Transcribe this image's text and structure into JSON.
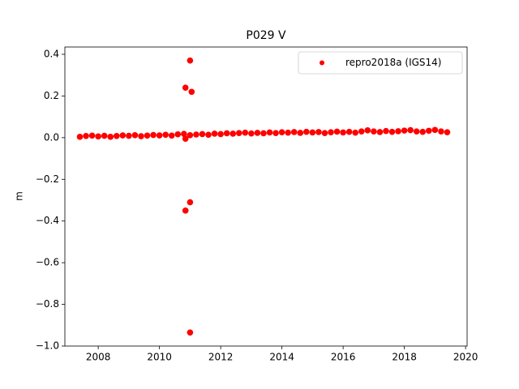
{
  "chart_data": {
    "type": "scatter",
    "title": "P029 V",
    "ylabel": "m",
    "series": [
      {
        "name": "repro2018a (IGS14)",
        "color": "#ff0000",
        "x": [
          2007.4,
          2007.6,
          2007.8,
          2008.0,
          2008.2,
          2008.4,
          2008.6,
          2008.8,
          2009.0,
          2009.2,
          2009.4,
          2009.6,
          2009.8,
          2010.0,
          2010.2,
          2010.4,
          2010.6,
          2010.8,
          2011.0,
          2011.2,
          2011.4,
          2011.6,
          2011.8,
          2012.0,
          2012.2,
          2012.4,
          2012.6,
          2012.8,
          2013.0,
          2013.2,
          2013.4,
          2013.6,
          2013.8,
          2014.0,
          2014.2,
          2014.4,
          2014.6,
          2014.8,
          2015.0,
          2015.2,
          2015.4,
          2015.6,
          2015.8,
          2016.0,
          2016.2,
          2016.4,
          2016.6,
          2016.8,
          2017.0,
          2017.2,
          2017.4,
          2017.6,
          2017.8,
          2018.0,
          2018.2,
          2018.4,
          2018.6,
          2018.8,
          2019.0,
          2019.2,
          2019.4,
          2011.0,
          2010.85,
          2011.05,
          2011.0,
          2010.85,
          2011.0,
          2010.85
        ],
        "y": [
          0.004,
          0.008,
          0.01,
          0.006,
          0.009,
          0.004,
          0.008,
          0.011,
          0.009,
          0.012,
          0.007,
          0.01,
          0.013,
          0.011,
          0.014,
          0.01,
          0.016,
          0.018,
          0.012,
          0.015,
          0.017,
          0.014,
          0.019,
          0.017,
          0.021,
          0.019,
          0.022,
          0.024,
          0.02,
          0.023,
          0.021,
          0.025,
          0.022,
          0.026,
          0.024,
          0.027,
          0.023,
          0.028,
          0.025,
          0.027,
          0.022,
          0.026,
          0.029,
          0.025,
          0.028,
          0.024,
          0.03,
          0.035,
          0.03,
          0.027,
          0.032,
          0.028,
          0.031,
          0.034,
          0.036,
          0.03,
          0.028,
          0.033,
          0.037,
          0.03,
          0.026,
          0.37,
          0.24,
          0.22,
          -0.31,
          -0.35,
          -0.935,
          -0.005
        ]
      }
    ],
    "xlim": [
      2006.91,
      2020.05
    ],
    "ylim": [
      -1.0,
      0.435
    ],
    "xticks": [
      2008,
      2010,
      2012,
      2014,
      2016,
      2018,
      2020
    ],
    "yticks": [
      {
        "value": -1.0,
        "label": "−1.0"
      },
      {
        "value": -0.8,
        "label": "−0.8"
      },
      {
        "value": -0.6,
        "label": "−0.6"
      },
      {
        "value": -0.4,
        "label": "−0.4"
      },
      {
        "value": -0.2,
        "label": "−0.2"
      },
      {
        "value": 0.0,
        "label": "0.0"
      },
      0.2,
      0.4
    ],
    "legend": "upper right"
  }
}
